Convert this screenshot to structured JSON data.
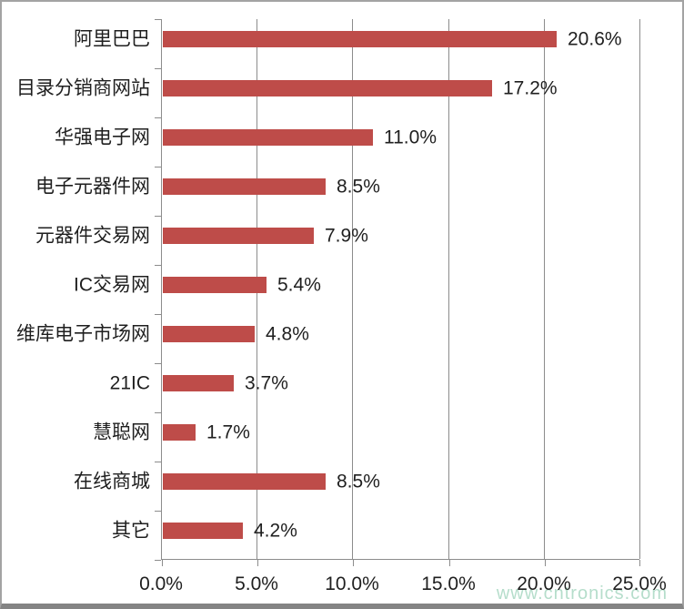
{
  "chart_data": {
    "type": "bar",
    "orientation": "horizontal",
    "title": "",
    "categories": [
      "阿里巴巴",
      "目录分销商网站",
      "华强电子网",
      "电子元器件网",
      "元器件交易网",
      "IC交易网",
      "维库电子市场网",
      "21IC",
      "慧聪网",
      "在线商城",
      "其它"
    ],
    "values": [
      20.6,
      17.2,
      11.0,
      8.5,
      7.9,
      5.4,
      4.8,
      3.7,
      1.7,
      8.5,
      4.2
    ],
    "data_labels": [
      "20.6%",
      "17.2%",
      "11.0%",
      "8.5%",
      "7.9%",
      "5.4%",
      "4.8%",
      "3.7%",
      "1.7%",
      "8.5%",
      "4.2%"
    ],
    "x_axis": {
      "tick_labels": [
        "0.0%",
        "5.0%",
        "10.0%",
        "15.0%",
        "20.0%",
        "25.0%"
      ],
      "min": 0,
      "max": 25,
      "grid": true
    },
    "y_axis": {
      "label": "",
      "tick_marks": true
    },
    "legend": "none",
    "colors": {
      "bar": "#be4c49",
      "gridline": "#8c8c8c",
      "axis": "#8c8c8c",
      "text": "#1f1f1f",
      "watermark": "#a9d8c2",
      "background": "#ffffff",
      "border": "#a3a3a3"
    }
  },
  "watermark": {
    "text": "www.cntronics.com"
  }
}
